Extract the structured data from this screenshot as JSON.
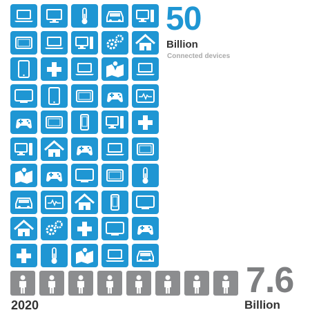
{
  "chart_data": {
    "type": "pictograph",
    "year": "2020",
    "devices": {
      "value": "50",
      "unit": "Billion",
      "label": "Connected devices"
    },
    "people": {
      "value": "7.6",
      "unit": "Billion"
    },
    "device_icon_rows": [
      [
        "laptop-icon",
        "monitor-icon",
        "thermometer-icon",
        "car-icon",
        "desktop-pc-icon"
      ],
      [
        "tablet-landscape-icon",
        "laptop-icon",
        "desktop-pc-icon",
        "gears-icon",
        "home-icon"
      ],
      [
        "tablet-icon",
        "medical-cross-icon",
        "laptop-icon",
        "location-map-icon",
        "laptop-icon"
      ],
      [
        "tv-icon",
        "tablet-icon",
        "tablet-landscape-icon",
        "gamepad-icon",
        "heart-monitor-icon"
      ],
      [
        "gamepad-icon",
        "tablet-landscape-icon",
        "phone-icon",
        "desktop-pc-icon",
        "medical-cross-icon"
      ],
      [
        "desktop-pc-icon",
        "home-icon",
        "gamepad-icon",
        "laptop-icon",
        "tablet-landscape-icon"
      ],
      [
        "location-map-icon",
        "gamepad-icon",
        "tv-icon",
        "tablet-landscape-icon",
        "thermometer-icon"
      ],
      [
        "car-icon",
        "heart-monitor-icon",
        "home-icon",
        "phone-icon",
        "tv-icon"
      ],
      [
        "home-icon",
        "gears-icon",
        "medical-cross-icon",
        "tv-icon",
        "gamepad-icon"
      ],
      [
        "medical-cross-icon",
        "thermometer-icon",
        "location-map-icon",
        "laptop-icon",
        "car-icon"
      ]
    ],
    "person_icon_count": 8,
    "colors": {
      "device_tile": "#1f96d3",
      "person_tile": "#8c8d8f",
      "devices_number": "#1f96d3",
      "people_number": "#7e7f81"
    }
  }
}
